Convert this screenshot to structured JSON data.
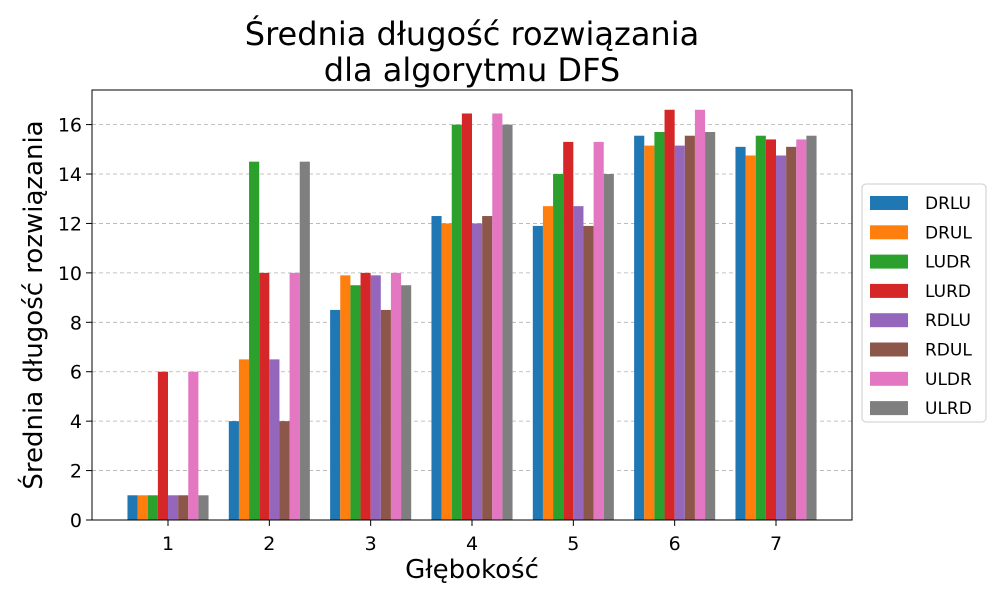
{
  "chart_data": {
    "type": "bar",
    "title": "Średnia długość rozwiązania\ndla algorytmu DFS",
    "xlabel": "Głębokość",
    "ylabel": "Średnia długość rozwiązania",
    "categories": [
      "1",
      "2",
      "3",
      "4",
      "5",
      "6",
      "7"
    ],
    "ylim": [
      0,
      17.4
    ],
    "yticks": [
      0,
      2,
      4,
      6,
      8,
      10,
      12,
      14,
      16
    ],
    "grid": "y-dashed",
    "legend_position": "right",
    "series": [
      {
        "name": "DRLU",
        "color": "#1f77b4",
        "values": [
          1,
          4,
          8.5,
          12.3,
          11.9,
          15.55,
          15.1
        ]
      },
      {
        "name": "DRUL",
        "color": "#ff7f0e",
        "values": [
          1,
          6.5,
          9.9,
          12.0,
          12.7,
          15.15,
          14.75
        ]
      },
      {
        "name": "LUDR",
        "color": "#2ca02c",
        "values": [
          1,
          14.5,
          9.5,
          16.0,
          14.0,
          15.7,
          15.55
        ]
      },
      {
        "name": "LURD",
        "color": "#d62728",
        "values": [
          6,
          10,
          10,
          16.45,
          15.3,
          16.6,
          15.4
        ]
      },
      {
        "name": "RDLU",
        "color": "#9467bd",
        "values": [
          1,
          6.5,
          9.9,
          12.0,
          12.7,
          15.15,
          14.75
        ]
      },
      {
        "name": "RDUL",
        "color": "#8c564b",
        "values": [
          1,
          4,
          8.5,
          12.3,
          11.9,
          15.55,
          15.1
        ]
      },
      {
        "name": "ULDR",
        "color": "#e377c2",
        "values": [
          6,
          10,
          10,
          16.45,
          15.3,
          16.6,
          15.4
        ]
      },
      {
        "name": "ULRD",
        "color": "#7f7f7f",
        "values": [
          1,
          14.5,
          9.5,
          16.0,
          14.0,
          15.7,
          15.55
        ]
      }
    ]
  }
}
